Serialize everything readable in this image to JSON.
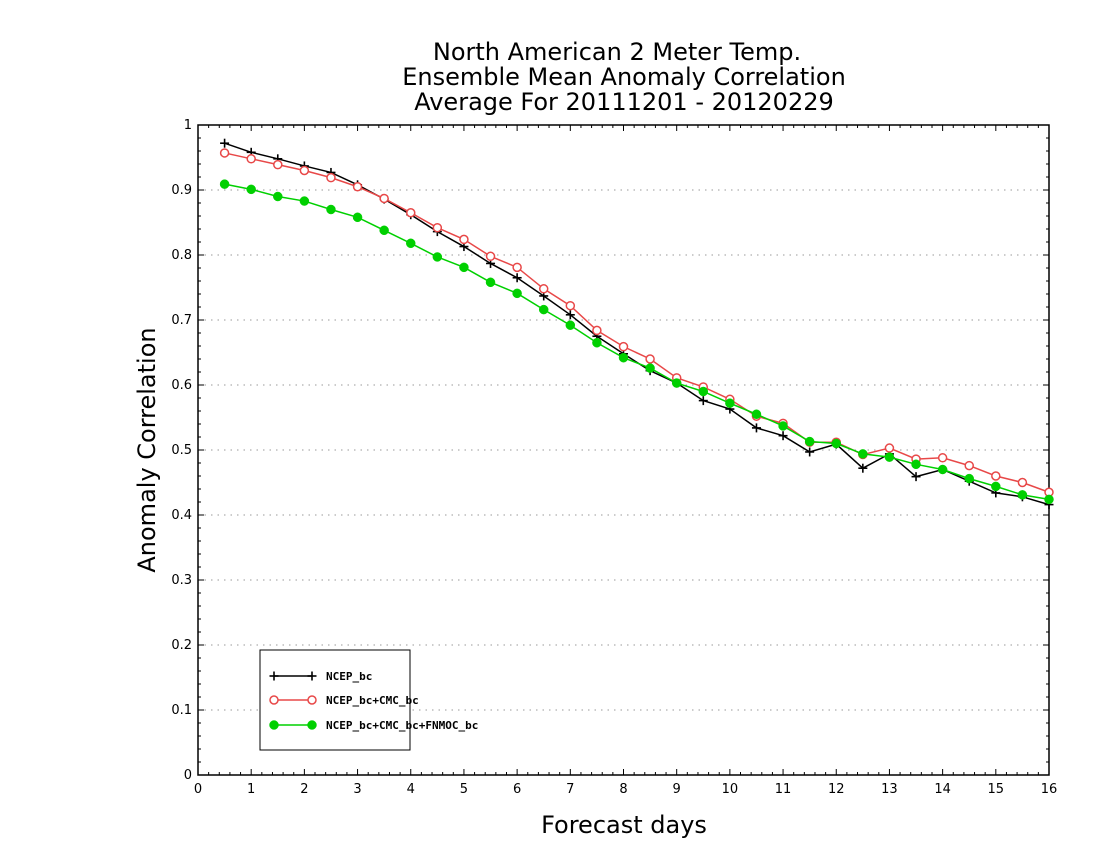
{
  "chart_data": {
    "type": "line",
    "title": [
      "North American 2 Meter Temp.",
      "Ensemble Mean Anomaly Correlation",
      "Average For 20111201 - 20120229"
    ],
    "xlabel": "Forecast days",
    "ylabel": "Anomaly Correlation",
    "xlim": [
      0,
      16
    ],
    "ylim": [
      0,
      1
    ],
    "xticks": [
      0,
      1,
      2,
      3,
      4,
      5,
      6,
      7,
      8,
      9,
      10,
      11,
      12,
      13,
      14,
      15,
      16
    ],
    "yticks": [
      0,
      0.1,
      0.2,
      0.3,
      0.4,
      0.5,
      0.6,
      0.7,
      0.8,
      0.9,
      1
    ],
    "ytick_labels": [
      "0",
      "0.1",
      "0.2",
      "0.3",
      "0.4",
      "0.5",
      "0.6",
      "0.7",
      "0.8",
      "0.9",
      "1"
    ],
    "grid": "horizontal dotted",
    "legend_position": "bottom-left",
    "x": [
      0.5,
      1,
      1.5,
      2,
      2.5,
      3,
      3.5,
      4,
      4.5,
      5,
      5.5,
      6,
      6.5,
      7,
      7.5,
      8,
      8.5,
      9,
      9.5,
      10,
      10.5,
      11,
      11.5,
      12,
      12.5,
      13,
      13.5,
      14,
      14.5,
      15,
      15.5,
      16
    ],
    "series": [
      {
        "name": "NCEP_bc",
        "color": "#000000",
        "marker": "plus",
        "values": [
          0.972,
          0.958,
          0.948,
          0.937,
          0.927,
          0.908,
          0.886,
          0.862,
          0.836,
          0.813,
          0.787,
          0.765,
          0.737,
          0.708,
          0.675,
          0.648,
          0.622,
          0.603,
          0.576,
          0.563,
          0.534,
          0.522,
          0.497,
          0.509,
          0.472,
          0.494,
          0.459,
          0.47,
          0.452,
          0.434,
          0.428,
          0.416
        ]
      },
      {
        "name": "NCEP_bc+CMC_bc",
        "color": "#e84848",
        "marker": "open-circle",
        "values": [
          0.957,
          0.948,
          0.939,
          0.93,
          0.919,
          0.905,
          0.887,
          0.865,
          0.842,
          0.824,
          0.798,
          0.781,
          0.748,
          0.722,
          0.684,
          0.659,
          0.64,
          0.611,
          0.597,
          0.578,
          0.552,
          0.541,
          0.512,
          0.512,
          0.493,
          0.503,
          0.486,
          0.488,
          0.476,
          0.46,
          0.45,
          0.435
        ]
      },
      {
        "name": "NCEP_bc+CMC_bc+FNMOC_bc",
        "color": "#00d000",
        "marker": "filled-circle",
        "values": [
          0.909,
          0.901,
          0.89,
          0.883,
          0.87,
          0.858,
          0.838,
          0.818,
          0.797,
          0.781,
          0.758,
          0.741,
          0.716,
          0.692,
          0.665,
          0.642,
          0.626,
          0.603,
          0.59,
          0.572,
          0.555,
          0.537,
          0.513,
          0.51,
          0.494,
          0.489,
          0.478,
          0.47,
          0.456,
          0.444,
          0.431,
          0.424
        ]
      }
    ]
  }
}
